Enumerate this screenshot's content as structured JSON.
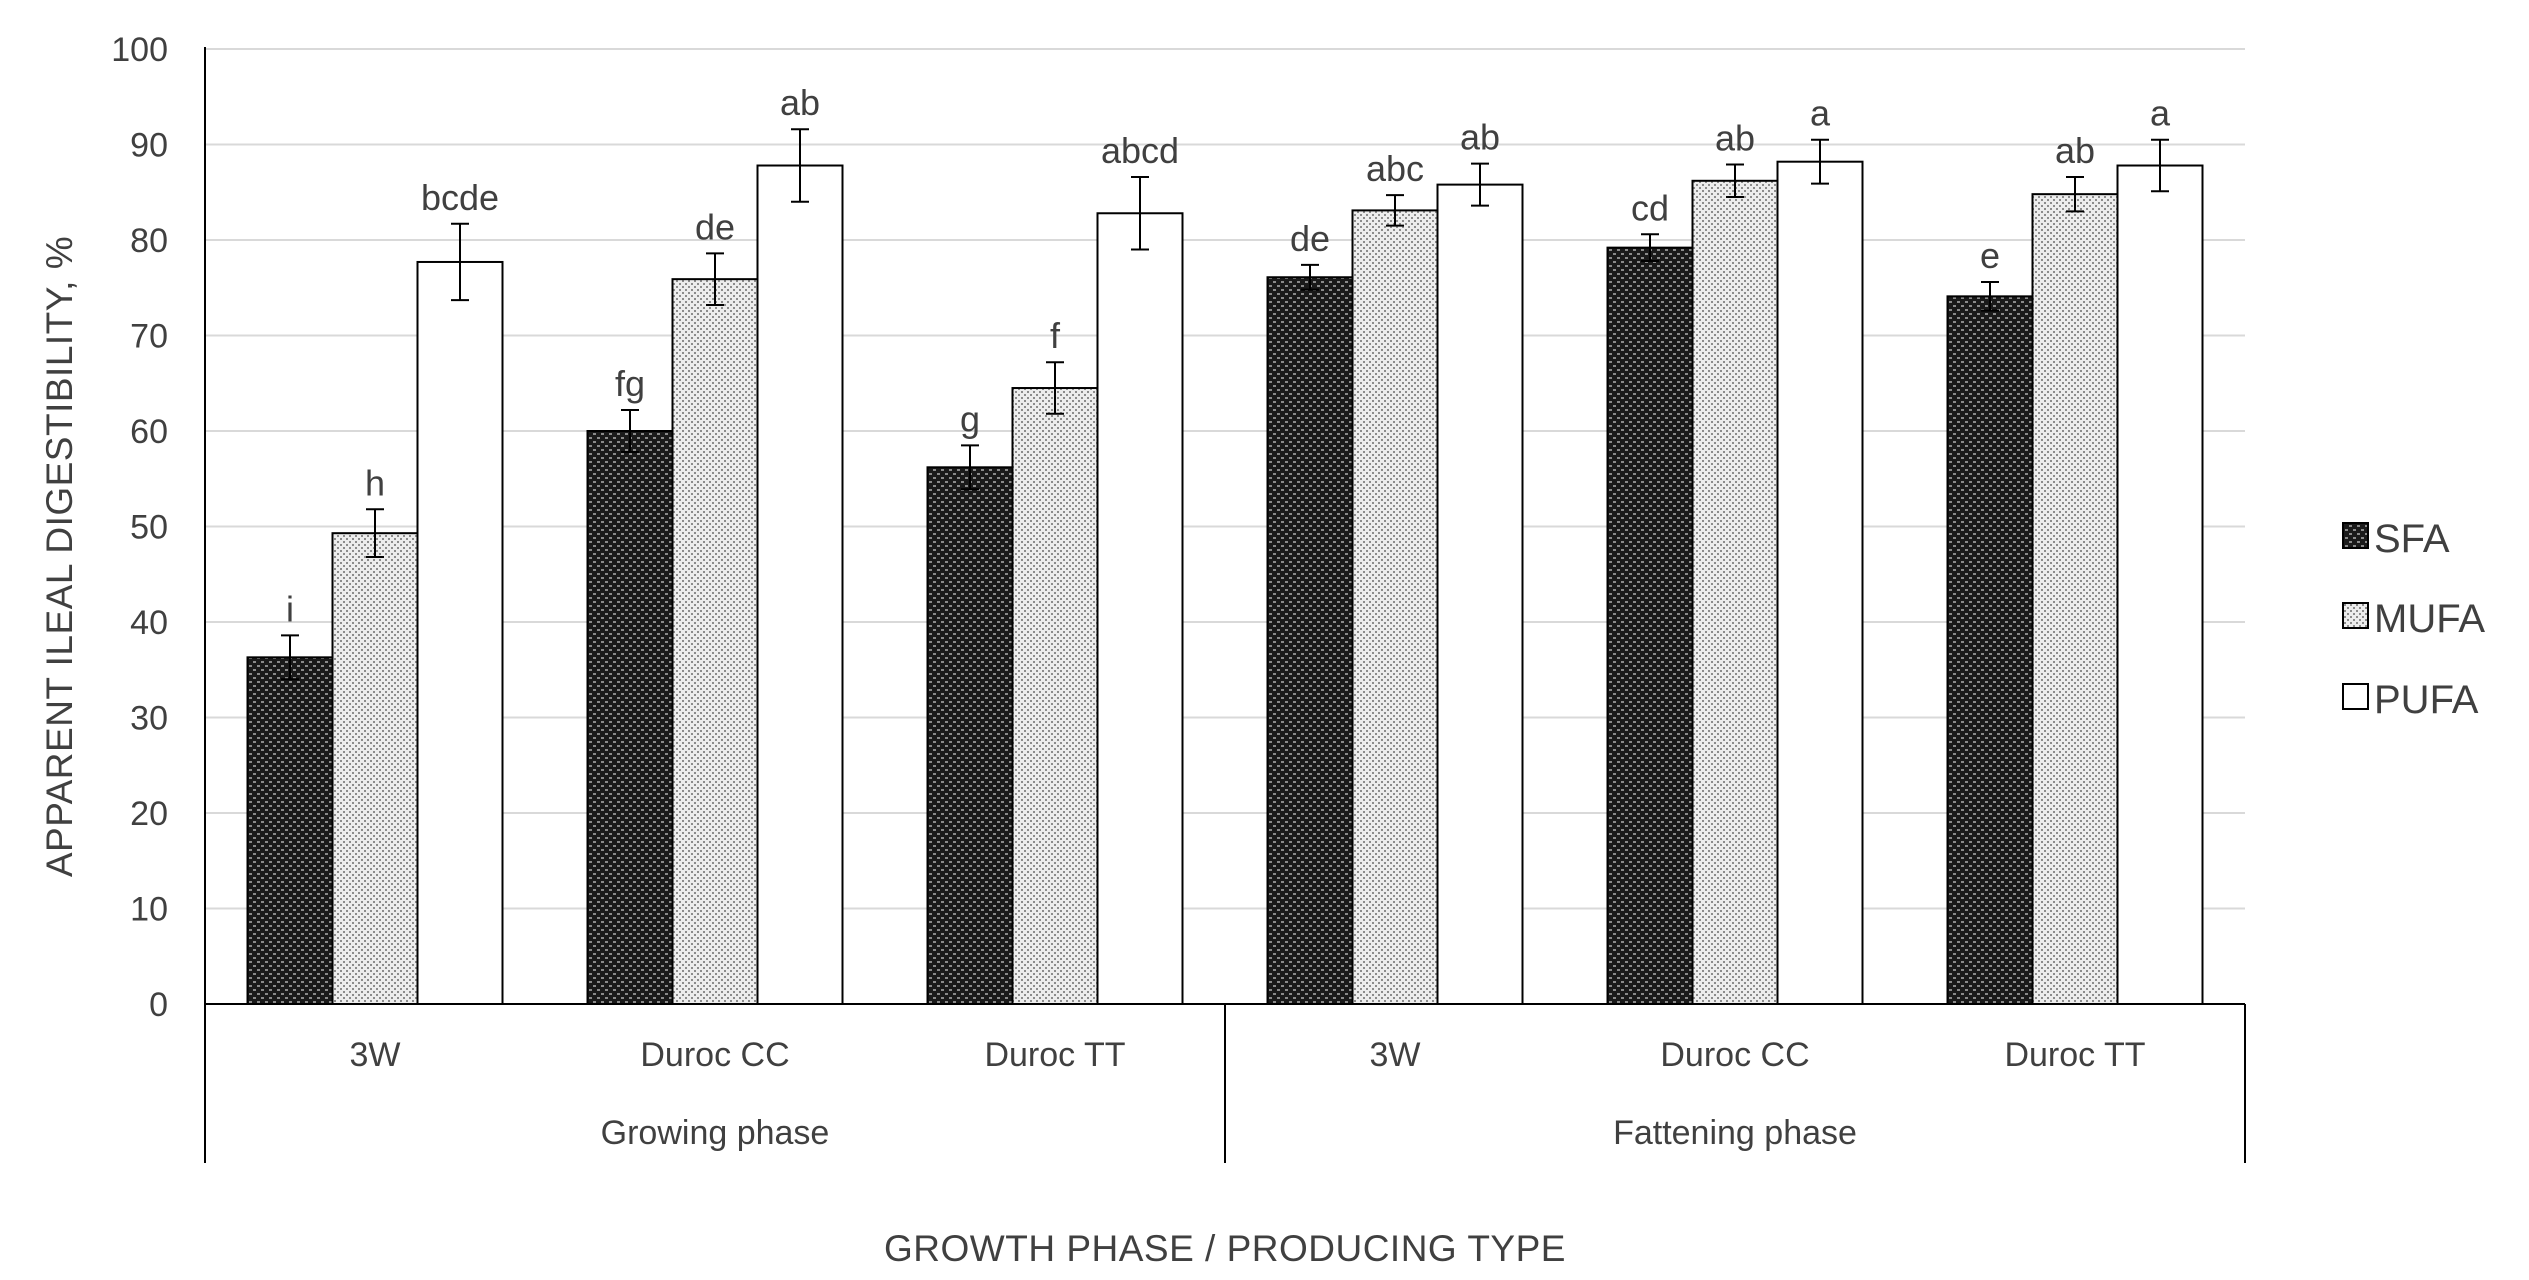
{
  "chart_data": {
    "type": "bar",
    "title": "",
    "xlabel": "GROWTH PHASE / PRODUCING TYPE",
    "ylabel": "APPARENT ILEAL DIGESTIBILITY, %",
    "ylim": [
      0,
      100
    ],
    "yticks": [
      0,
      10,
      20,
      30,
      40,
      50,
      60,
      70,
      80,
      90,
      100
    ],
    "grid": true,
    "legend_position": "right",
    "groups": [
      {
        "label": "Growing phase",
        "categories": [
          "3W",
          "Duroc CC",
          "Duroc TT"
        ]
      },
      {
        "label": "Fattening phase",
        "categories": [
          "3W",
          "Duroc CC",
          "Duroc TT"
        ]
      }
    ],
    "series": [
      {
        "name": "SFA",
        "pattern": "dark",
        "values": [
          36.3,
          60.0,
          56.2,
          76.1,
          79.2,
          74.1
        ],
        "errors": [
          2.3,
          2.2,
          2.3,
          1.3,
          1.4,
          1.5
        ],
        "letters": [
          "i",
          "fg",
          "g",
          "de",
          "cd",
          "e"
        ]
      },
      {
        "name": "MUFA",
        "pattern": "light",
        "values": [
          49.3,
          75.9,
          64.5,
          83.1,
          86.2,
          84.8
        ],
        "errors": [
          2.5,
          2.7,
          2.7,
          1.6,
          1.7,
          1.8
        ],
        "letters": [
          "h",
          "de",
          "f",
          "abc",
          "ab",
          "ab"
        ]
      },
      {
        "name": "PUFA",
        "pattern": "white",
        "values": [
          77.7,
          87.8,
          82.8,
          85.8,
          88.2,
          87.8
        ],
        "errors": [
          4.0,
          3.8,
          3.8,
          2.2,
          2.3,
          2.7
        ],
        "letters": [
          "bcde",
          "ab",
          "abcd",
          "ab",
          "a",
          "a"
        ]
      }
    ]
  }
}
